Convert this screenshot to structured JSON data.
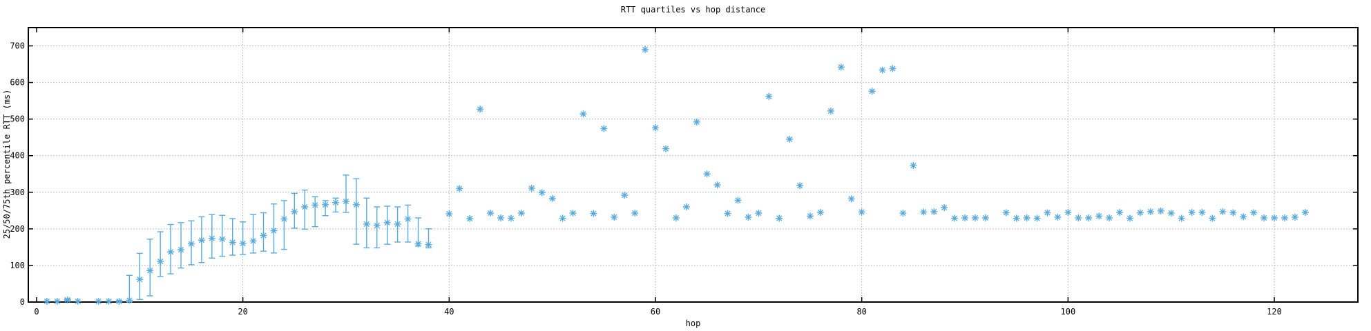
{
  "title": "RTT quartiles vs hop distance",
  "x_axis": {
    "label": "hop",
    "ticks": [
      0,
      20,
      40,
      60,
      80,
      100,
      120
    ]
  },
  "y_axis": {
    "label": "25/50/75th percentile RTT (ms)",
    "ticks": [
      0,
      100,
      200,
      300,
      400,
      500,
      600,
      700
    ]
  },
  "style": {
    "series_color": "#57aadf",
    "grid_color": "#a9a9a9",
    "axis_color": "#000000",
    "background": "#ffffff"
  },
  "chart_data": {
    "type": "scatter",
    "subtype": "median-with-quartile-errorbars",
    "marker": "asterisk",
    "title": "RTT quartiles vs hop distance",
    "xlabel": "hop",
    "ylabel": "25/50/75th percentile RTT (ms)",
    "xlim": [
      -0.8,
      128.1
    ],
    "ylim": [
      0,
      750
    ],
    "grid": true,
    "legend": "none",
    "columns": [
      "hop",
      "q25",
      "median",
      "q75"
    ],
    "points": [
      [
        1,
        0,
        2,
        3
      ],
      [
        2,
        0,
        2,
        3
      ],
      [
        3,
        3,
        6,
        9
      ],
      [
        4,
        0,
        2,
        3
      ],
      [
        6,
        0,
        2,
        3
      ],
      [
        7,
        0,
        2,
        3
      ],
      [
        8,
        0,
        2,
        4
      ],
      [
        9,
        1,
        5,
        73
      ],
      [
        10,
        7,
        62,
        133
      ],
      [
        11,
        17,
        86,
        172
      ],
      [
        12,
        70,
        111,
        192
      ],
      [
        13,
        77,
        137,
        212
      ],
      [
        14,
        93,
        143,
        217
      ],
      [
        15,
        102,
        159,
        222
      ],
      [
        16,
        108,
        169,
        233
      ],
      [
        17,
        120,
        174,
        239
      ],
      [
        18,
        125,
        172,
        237
      ],
      [
        19,
        128,
        163,
        228
      ],
      [
        20,
        130,
        160,
        219
      ],
      [
        21,
        134,
        167,
        239
      ],
      [
        22,
        139,
        182,
        244
      ],
      [
        23,
        134,
        195,
        268
      ],
      [
        24,
        144,
        227,
        277
      ],
      [
        25,
        202,
        247,
        297
      ],
      [
        26,
        199,
        260,
        306
      ],
      [
        27,
        206,
        265,
        288
      ],
      [
        28,
        236,
        266,
        277
      ],
      [
        29,
        246,
        272,
        284
      ],
      [
        30,
        245,
        275,
        347
      ],
      [
        31,
        158,
        266,
        337
      ],
      [
        32,
        148,
        213,
        284
      ],
      [
        33,
        148,
        209,
        260
      ],
      [
        34,
        158,
        217,
        262
      ],
      [
        35,
        164,
        213,
        260
      ],
      [
        36,
        164,
        227,
        265
      ],
      [
        37,
        153,
        159,
        230
      ],
      [
        38,
        148,
        157,
        200
      ],
      [
        40,
        null,
        241,
        null
      ],
      [
        41,
        null,
        310,
        null
      ],
      [
        42,
        null,
        228,
        null
      ],
      [
        43,
        null,
        527,
        null
      ],
      [
        44,
        null,
        243,
        null
      ],
      [
        45,
        null,
        230,
        null
      ],
      [
        46,
        null,
        229,
        null
      ],
      [
        47,
        null,
        243,
        null
      ],
      [
        48,
        null,
        311,
        null
      ],
      [
        49,
        null,
        299,
        null
      ],
      [
        50,
        null,
        283,
        null
      ],
      [
        51,
        null,
        229,
        null
      ],
      [
        52,
        null,
        243,
        null
      ],
      [
        53,
        null,
        514,
        null
      ],
      [
        54,
        null,
        242,
        null
      ],
      [
        55,
        null,
        474,
        null
      ],
      [
        56,
        null,
        232,
        null
      ],
      [
        57,
        null,
        292,
        null
      ],
      [
        58,
        null,
        243,
        null
      ],
      [
        59,
        null,
        690,
        null
      ],
      [
        60,
        null,
        476,
        null
      ],
      [
        61,
        null,
        419,
        null
      ],
      [
        62,
        null,
        230,
        null
      ],
      [
        63,
        null,
        260,
        null
      ],
      [
        64,
        null,
        492,
        null
      ],
      [
        65,
        null,
        350,
        null
      ],
      [
        66,
        null,
        320,
        null
      ],
      [
        67,
        null,
        242,
        null
      ],
      [
        68,
        null,
        278,
        null
      ],
      [
        69,
        null,
        232,
        null
      ],
      [
        70,
        null,
        243,
        null
      ],
      [
        71,
        null,
        562,
        null
      ],
      [
        72,
        null,
        229,
        null
      ],
      [
        73,
        null,
        445,
        null
      ],
      [
        74,
        null,
        318,
        null
      ],
      [
        75,
        null,
        235,
        null
      ],
      [
        76,
        null,
        245,
        null
      ],
      [
        77,
        null,
        522,
        null
      ],
      [
        78,
        null,
        642,
        null
      ],
      [
        79,
        null,
        282,
        null
      ],
      [
        80,
        null,
        246,
        null
      ],
      [
        81,
        null,
        576,
        null
      ],
      [
        82,
        null,
        634,
        null
      ],
      [
        83,
        null,
        638,
        null
      ],
      [
        84,
        null,
        243,
        null
      ],
      [
        85,
        null,
        373,
        null
      ],
      [
        86,
        null,
        246,
        null
      ],
      [
        87,
        null,
        247,
        null
      ],
      [
        88,
        null,
        258,
        null
      ],
      [
        89,
        null,
        229,
        null
      ],
      [
        90,
        null,
        230,
        null
      ],
      [
        91,
        null,
        230,
        null
      ],
      [
        92,
        null,
        230,
        null
      ],
      [
        94,
        null,
        244,
        null
      ],
      [
        95,
        null,
        229,
        null
      ],
      [
        96,
        null,
        230,
        null
      ],
      [
        97,
        null,
        229,
        null
      ],
      [
        98,
        null,
        244,
        null
      ],
      [
        99,
        null,
        232,
        null
      ],
      [
        100,
        null,
        245,
        null
      ],
      [
        101,
        null,
        230,
        null
      ],
      [
        102,
        null,
        230,
        null
      ],
      [
        103,
        null,
        235,
        null
      ],
      [
        104,
        null,
        230,
        null
      ],
      [
        105,
        null,
        245,
        null
      ],
      [
        106,
        null,
        229,
        null
      ],
      [
        107,
        null,
        244,
        null
      ],
      [
        108,
        null,
        247,
        null
      ],
      [
        109,
        null,
        249,
        null
      ],
      [
        110,
        null,
        243,
        null
      ],
      [
        111,
        null,
        229,
        null
      ],
      [
        112,
        null,
        245,
        null
      ],
      [
        113,
        null,
        245,
        null
      ],
      [
        114,
        null,
        229,
        null
      ],
      [
        115,
        null,
        247,
        null
      ],
      [
        116,
        null,
        244,
        null
      ],
      [
        117,
        null,
        233,
        null
      ],
      [
        118,
        null,
        244,
        null
      ],
      [
        119,
        null,
        230,
        null
      ],
      [
        120,
        null,
        230,
        null
      ],
      [
        121,
        null,
        230,
        null
      ],
      [
        122,
        null,
        232,
        null
      ],
      [
        123,
        null,
        245,
        null
      ]
    ]
  }
}
